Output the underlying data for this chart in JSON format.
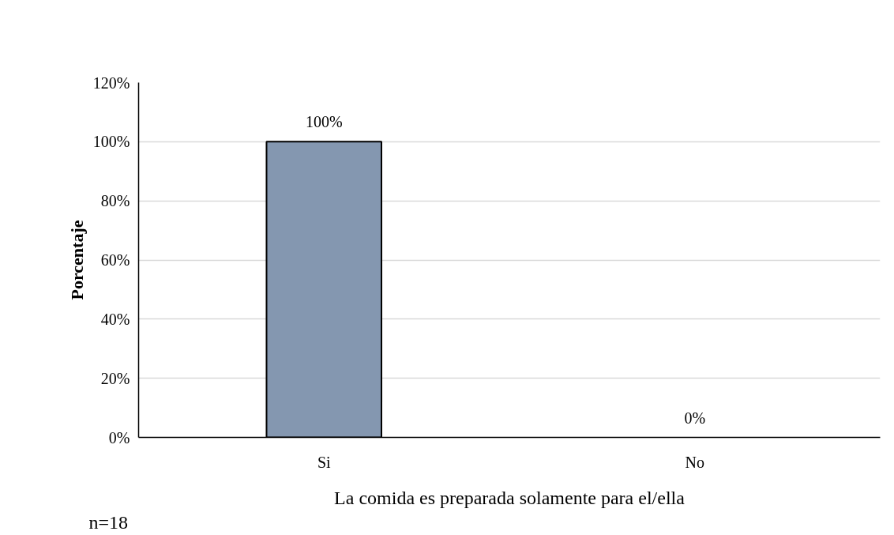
{
  "chart_data": {
    "type": "bar",
    "xlabel": "La comida es preparada solamente para el/ella",
    "ylabel": "Porcentaje",
    "categories": [
      "Si",
      "No"
    ],
    "values": [
      100,
      0
    ],
    "value_labels": [
      "100%",
      "0%"
    ],
    "color": "#8497b0",
    "ylim": [
      0,
      120
    ],
    "yticks": [
      {
        "value": 0,
        "label": "0%"
      },
      {
        "value": 20,
        "label": "20%"
      },
      {
        "value": 40,
        "label": "40%"
      },
      {
        "value": 60,
        "label": "60%"
      },
      {
        "value": 80,
        "label": "80%"
      },
      {
        "value": 100,
        "label": "100%"
      },
      {
        "value": 120,
        "label": "120%"
      }
    ],
    "grid": "y",
    "annotations": [
      "n=18"
    ]
  }
}
